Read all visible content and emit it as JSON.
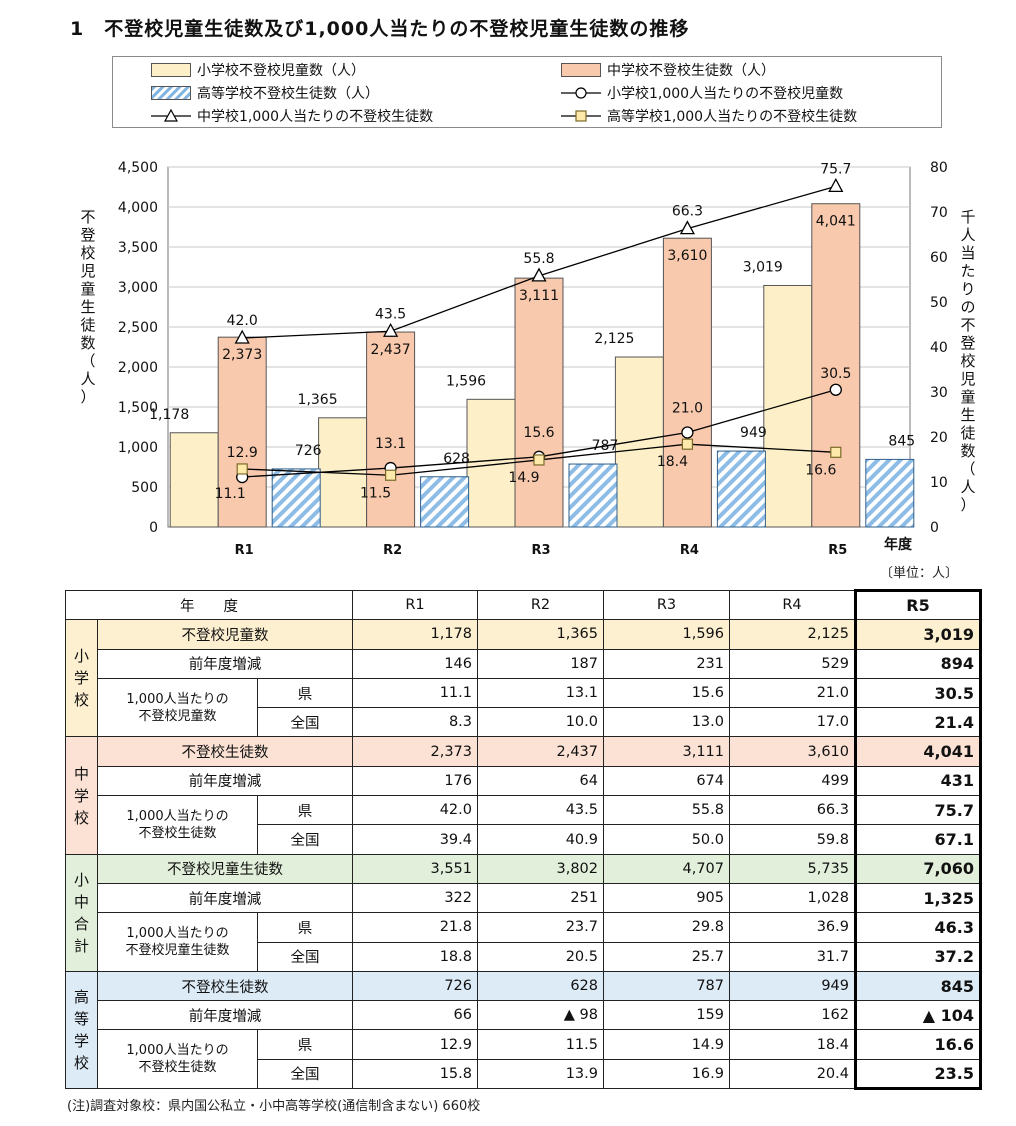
{
  "title": "1　不登校児童生徒数及び1,000人当たりの不登校児童生徒数の推移",
  "chart_data": {
    "type": "bar",
    "categories": [
      "R1",
      "R2",
      "R3",
      "R4",
      "R5"
    ],
    "xlabel": "年度",
    "ylabel_left": "不登校児童生徒数（人）",
    "ylabel_right": "千人当たりの不登校児童生徒数（人）",
    "ylim_left": [
      0,
      4500
    ],
    "yticks_left": [
      "0",
      "500",
      "1,000",
      "1,500",
      "2,000",
      "2,500",
      "3,000",
      "3,500",
      "4,000",
      "4,500"
    ],
    "ylim_right": [
      0,
      80
    ],
    "yticks_right": [
      "0",
      "10",
      "20",
      "30",
      "40",
      "50",
      "60",
      "70",
      "80"
    ],
    "bar_series": [
      {
        "name": "小学校不登校児童数（人）",
        "values": [
          1178,
          1365,
          1596,
          2125,
          3019
        ],
        "labels": [
          "1,178",
          "1,365",
          "1,596",
          "2,125",
          "3,019"
        ],
        "color": "#fdf0c8"
      },
      {
        "name": "中学校不登校生徒数（人）",
        "values": [
          2373,
          2437,
          3111,
          3610,
          4041
        ],
        "labels": [
          "2,373",
          "2,437",
          "3,111",
          "3,610",
          "4,041"
        ],
        "color": "#f8c9ac"
      },
      {
        "name": "高等学校不登校生徒数（人）",
        "values": [
          726,
          628,
          787,
          949,
          845
        ],
        "labels": [
          "726",
          "628",
          "787",
          "949",
          "845"
        ],
        "color": "#9ec7ea"
      }
    ],
    "line_series": [
      {
        "name": "小学校1,000人当たりの不登校児童数",
        "values": [
          11.1,
          13.1,
          15.6,
          21.0,
          30.5
        ],
        "labels": [
          "11.1",
          "13.1",
          "15.6",
          "21.0",
          "30.5"
        ],
        "marker": "circle"
      },
      {
        "name": "中学校1,000人当たりの不登校生徒数",
        "values": [
          42.0,
          43.5,
          55.8,
          66.3,
          75.7
        ],
        "labels": [
          "42.0",
          "43.5",
          "55.8",
          "66.3",
          "75.7"
        ],
        "marker": "triangle"
      },
      {
        "name": "高等学校1,000人当たりの不登校生徒数",
        "values": [
          12.9,
          11.5,
          14.9,
          18.4,
          16.6
        ],
        "labels": [
          "12.9",
          "11.5",
          "14.9",
          "18.4",
          "16.6"
        ],
        "marker": "square"
      }
    ]
  },
  "unit_note": "〔単位：人〕",
  "table": {
    "header": {
      "year_label": "年　　度",
      "years": [
        "R1",
        "R2",
        "R3",
        "R4",
        "R5"
      ]
    },
    "groups": [
      {
        "name": "小学校",
        "main_label": "不登校児童数",
        "main_values": [
          "1,178",
          "1,365",
          "1,596",
          "2,125",
          "3,019"
        ],
        "change_label": "前年度増減",
        "change_values": [
          "146",
          "187",
          "231",
          "529",
          "894"
        ],
        "per_label": "1,000人当たりの\n不登校児童数",
        "pref_label": "県",
        "pref_values": [
          "11.1",
          "13.1",
          "15.6",
          "21.0",
          "30.5"
        ],
        "nat_label": "全国",
        "nat_values": [
          "8.3",
          "10.0",
          "13.0",
          "17.0",
          "21.4"
        ]
      },
      {
        "name": "中学校",
        "main_label": "不登校生徒数",
        "main_values": [
          "2,373",
          "2,437",
          "3,111",
          "3,610",
          "4,041"
        ],
        "change_label": "前年度増減",
        "change_values": [
          "176",
          "64",
          "674",
          "499",
          "431"
        ],
        "per_label": "1,000人当たりの\n不登校生徒数",
        "pref_label": "県",
        "pref_values": [
          "42.0",
          "43.5",
          "55.8",
          "66.3",
          "75.7"
        ],
        "nat_label": "全国",
        "nat_values": [
          "39.4",
          "40.9",
          "50.0",
          "59.8",
          "67.1"
        ]
      },
      {
        "name": "小中合計",
        "main_label": "不登校児童生徒数",
        "main_values": [
          "3,551",
          "3,802",
          "4,707",
          "5,735",
          "7,060"
        ],
        "change_label": "前年度増減",
        "change_values": [
          "322",
          "251",
          "905",
          "1,028",
          "1,325"
        ],
        "per_label": "1,000人当たりの\n不登校児童生徒数",
        "pref_label": "県",
        "pref_values": [
          "21.8",
          "23.7",
          "29.8",
          "36.9",
          "46.3"
        ],
        "nat_label": "全国",
        "nat_values": [
          "18.8",
          "20.5",
          "25.7",
          "31.7",
          "37.2"
        ]
      },
      {
        "name": "高等学校",
        "main_label": "不登校生徒数",
        "main_values": [
          "726",
          "628",
          "787",
          "949",
          "845"
        ],
        "change_label": "前年度増減",
        "change_values": [
          "66",
          "▲ 98",
          "159",
          "162",
          "▲ 104"
        ],
        "per_label": "1,000人当たりの\n不登校生徒数",
        "pref_label": "県",
        "pref_values": [
          "12.9",
          "11.5",
          "14.9",
          "18.4",
          "16.6"
        ],
        "nat_label": "全国",
        "nat_values": [
          "15.8",
          "13.9",
          "16.9",
          "20.4",
          "23.5"
        ]
      }
    ]
  },
  "note": "(注)調査対象校：県内国公私立・小中高等学校(通信制含まない) 660校"
}
